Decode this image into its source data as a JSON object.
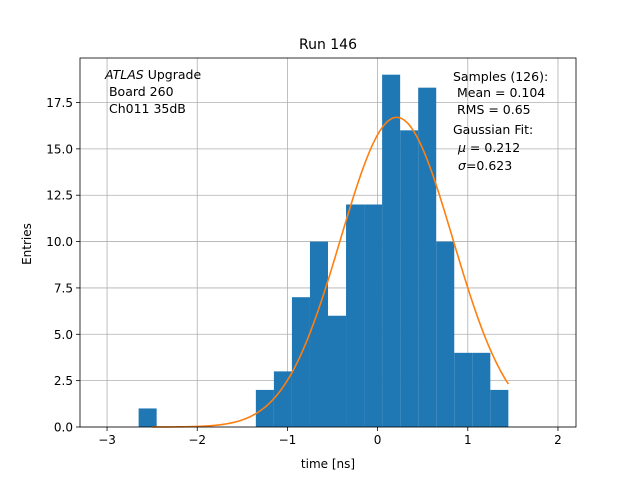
{
  "chart_data": {
    "type": "bar",
    "title": "Run 146",
    "xlabel": "time [ns]",
    "ylabel": "Entries",
    "xlim": [
      -3.3,
      2.2
    ],
    "ylim": [
      0,
      19.9
    ],
    "grid": true,
    "xticks": [
      -3,
      -2,
      -1,
      0,
      1,
      2
    ],
    "xtick_labels": [
      "−3",
      "−2",
      "−1",
      "0",
      "1",
      "2"
    ],
    "yticks": [
      0,
      2.5,
      5,
      7.5,
      10,
      12.5,
      15,
      17.5
    ],
    "ytick_labels": [
      "0.0",
      "2.5",
      "5.0",
      "7.5",
      "10.0",
      "12.5",
      "15.0",
      "17.5"
    ],
    "bin_edges": [
      -2.65,
      -2.45,
      -2.25,
      -2.05,
      -1.85,
      -1.65,
      -1.45,
      -1.35,
      -1.15,
      -0.95,
      -0.75,
      -0.55,
      -0.35,
      -0.15,
      0.05,
      0.25,
      0.45,
      0.65,
      0.85,
      1.05,
      1.25,
      1.45,
      1.55
    ],
    "counts": [
      1,
      0,
      0,
      0,
      0,
      0,
      0,
      2,
      3,
      7,
      10,
      6,
      12,
      12,
      19,
      16,
      18.3,
      10,
      4,
      4,
      2,
      0
    ],
    "fit": {
      "mu": 0.212,
      "sigma": 0.623,
      "amplitude": 16.7,
      "x_start": -2.5,
      "x_end": 1.45
    },
    "bar_color": "#1f77b4",
    "fit_color": "#ff7f0e",
    "annotations": {
      "atlas_italic": "ATLAS",
      "atlas_rest": " Upgrade",
      "board": " Board 260",
      "channel": " Ch011 35dB",
      "samples": "Samples (126):",
      "mean": " Mean = 0.104",
      "rms": " RMS = 0.65",
      "gauss_title": "Gaussian Fit:",
      "mu_label": "μ",
      "mu_value": " = 0.212",
      "sigma_label": "σ",
      "sigma_value": "=0.623"
    }
  }
}
